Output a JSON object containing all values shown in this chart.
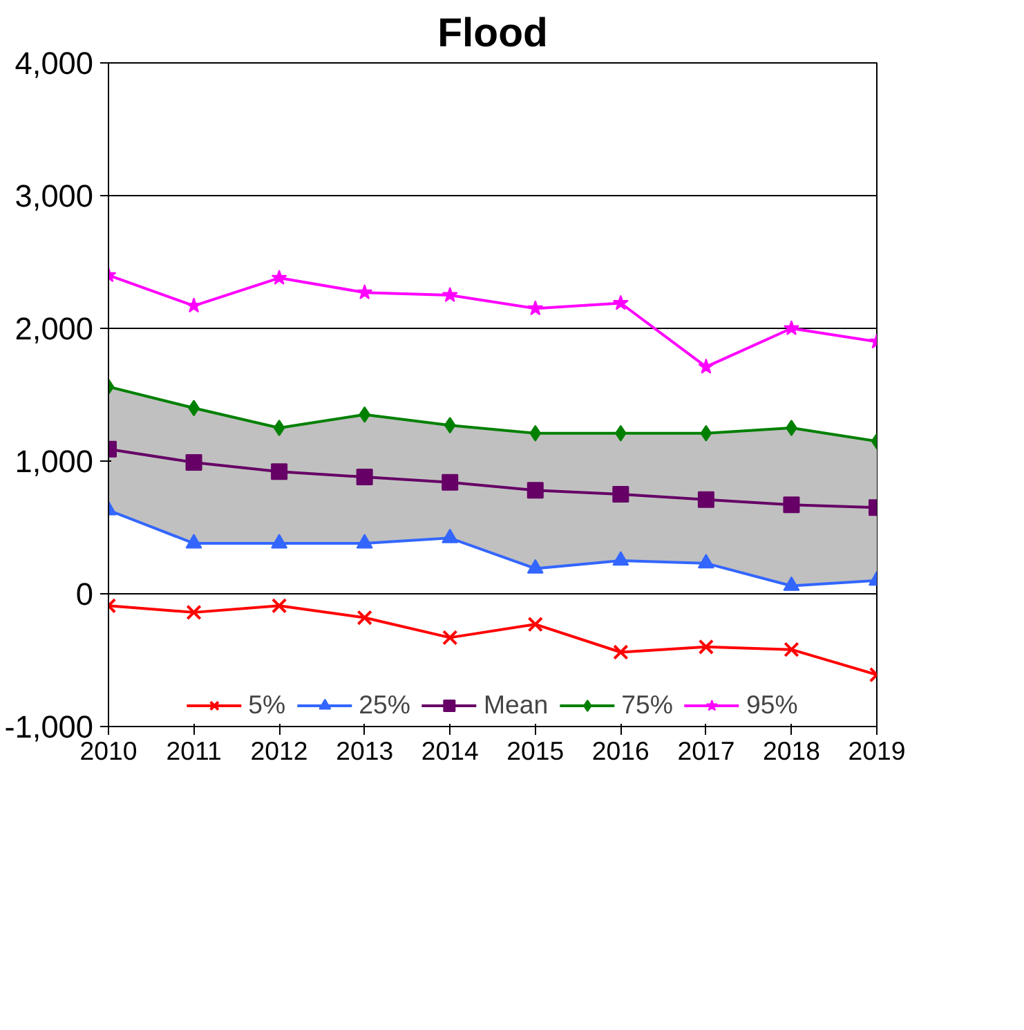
{
  "chart_data": {
    "type": "line",
    "title": "Flood",
    "x": [
      2010,
      2011,
      2012,
      2013,
      2014,
      2015,
      2016,
      2017,
      2018,
      2019
    ],
    "series": [
      {
        "name": "5%",
        "color": "#ff0000",
        "marker": "cross",
        "values": [
          -90,
          -140,
          -90,
          -180,
          -330,
          -230,
          -440,
          -400,
          -420,
          -610
        ]
      },
      {
        "name": "25%",
        "color": "#3366ff",
        "marker": "triangle",
        "values": [
          630,
          380,
          380,
          380,
          420,
          190,
          250,
          230,
          60,
          100
        ]
      },
      {
        "name": "Mean",
        "color": "#660066",
        "marker": "square",
        "values": [
          1090,
          990,
          920,
          880,
          840,
          780,
          750,
          710,
          670,
          650
        ],
        "lower": [
          630,
          380,
          380,
          380,
          420,
          190,
          250,
          230,
          60,
          100
        ],
        "upper": [
          1560,
          1400,
          1250,
          1350,
          1270,
          1210,
          1210,
          1210,
          1250,
          1150
        ]
      },
      {
        "name": "75%",
        "color": "#008000",
        "marker": "diamond",
        "values": [
          1560,
          1400,
          1250,
          1350,
          1270,
          1210,
          1210,
          1210,
          1250,
          1150
        ]
      },
      {
        "name": "95%",
        "color": "#ff00ff",
        "marker": "star",
        "values": [
          2400,
          2170,
          2380,
          2270,
          2250,
          2150,
          2190,
          1710,
          2000,
          1900
        ]
      }
    ],
    "xlim": [
      2010,
      2019
    ],
    "xticks": [
      2010,
      2011,
      2012,
      2013,
      2014,
      2015,
      2016,
      2017,
      2018,
      2019
    ],
    "ylim": [
      -1000,
      4000
    ],
    "yticks": [
      {
        "value": -1000,
        "label": "-1,000"
      },
      0,
      {
        "value": 1000,
        "label": "1,000"
      },
      {
        "value": 2000,
        "label": "2,000"
      },
      {
        "value": 3000,
        "label": "3,000"
      },
      {
        "value": 4000,
        "label": "4,000"
      }
    ],
    "grid": "y",
    "legend": "bottom",
    "line_style": "solid"
  }
}
